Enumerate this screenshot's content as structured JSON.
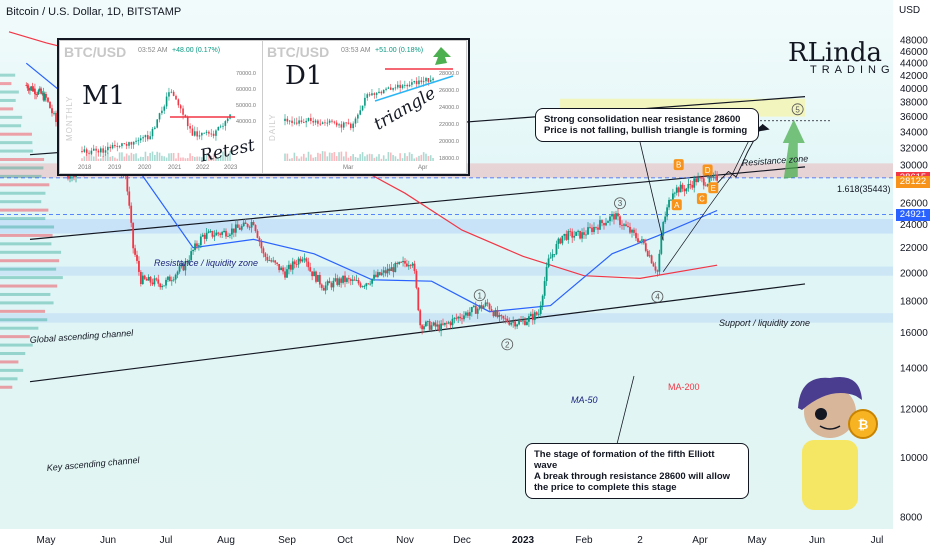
{
  "header": {
    "title": "Bitcoin / U.S. Dollar, 1D, BITSTAMP",
    "currency": "USD"
  },
  "chart_data": {
    "type": "candlestick",
    "y_ticks": [
      "48000",
      "46000",
      "44000",
      "42000",
      "40000",
      "38000",
      "36000",
      "34000",
      "32000",
      "30000",
      "28000",
      "26000",
      "24000",
      "22000",
      "20000",
      "18000",
      "16000",
      "14000",
      "12000",
      "10000",
      "8000"
    ],
    "y_tick_values": [
      48000,
      46000,
      44000,
      42000,
      40000,
      38000,
      36000,
      34000,
      32000,
      30000,
      28000,
      26000,
      24000,
      22000,
      20000,
      18000,
      16000,
      14000,
      12000,
      10000,
      8000
    ],
    "x_ticks": [
      "May",
      "Jun",
      "Jul",
      "Aug",
      "Sep",
      "Oct",
      "Nov",
      "Dec",
      "2023",
      "Feb",
      "2",
      "Apr",
      "May",
      "Jun",
      "Jul"
    ],
    "y_range": [
      8000,
      48000
    ],
    "scale": "log",
    "price_labels": [
      {
        "value": 28615,
        "text": "28615",
        "color": "#f23645"
      },
      {
        "value": 28122,
        "text": "28122",
        "color": "#f7931a"
      },
      {
        "value": 24921,
        "text": "24921",
        "color": "#2962ff"
      }
    ],
    "close_path": [
      [
        "2022-04-15",
        40500
      ],
      [
        "2022-04-25",
        39500
      ],
      [
        "2022-05-01",
        38500
      ],
      [
        "2022-05-08",
        34000
      ],
      [
        "2022-05-12",
        29000
      ],
      [
        "2022-05-20",
        29500
      ],
      [
        "2022-06-01",
        30500
      ],
      [
        "2022-06-10",
        29000
      ],
      [
        "2022-06-14",
        22000
      ],
      [
        "2022-06-18",
        19500
      ],
      [
        "2022-06-30",
        19200
      ],
      [
        "2022-07-10",
        20500
      ],
      [
        "2022-07-20",
        23000
      ],
      [
        "2022-07-31",
        23300
      ],
      [
        "2022-08-10",
        23800
      ],
      [
        "2022-08-15",
        24300
      ],
      [
        "2022-08-20",
        21400
      ],
      [
        "2022-08-31",
        20000
      ],
      [
        "2022-09-10",
        21500
      ],
      [
        "2022-09-13",
        20200
      ],
      [
        "2022-09-20",
        19000
      ],
      [
        "2022-09-30",
        19500
      ],
      [
        "2022-10-10",
        19200
      ],
      [
        "2022-10-25",
        20300
      ],
      [
        "2022-11-05",
        21000
      ],
      [
        "2022-11-09",
        16500
      ],
      [
        "2022-11-20",
        16300
      ],
      [
        "2022-11-30",
        17000
      ],
      [
        "2022-12-14",
        17800
      ],
      [
        "2022-12-20",
        16800
      ],
      [
        "2022-12-31",
        16600
      ],
      [
        "2023-01-09",
        17200
      ],
      [
        "2023-01-14",
        20900
      ],
      [
        "2023-01-21",
        23000
      ],
      [
        "2023-01-31",
        23100
      ],
      [
        "2023-02-16",
        24800
      ],
      [
        "2023-02-25",
        23200
      ],
      [
        "2023-03-03",
        22300
      ],
      [
        "2023-03-10",
        20100
      ],
      [
        "2023-03-13",
        24100
      ],
      [
        "2023-03-18",
        27400
      ],
      [
        "2023-03-25",
        27500
      ],
      [
        "2023-03-30",
        28400
      ],
      [
        "2023-04-05",
        28200
      ],
      [
        "2023-04-10",
        28600
      ]
    ],
    "ma_200": [
      [
        "2022-04-01",
        49500
      ],
      [
        "2022-05-01",
        47500
      ],
      [
        "2022-06-01",
        44800
      ],
      [
        "2022-07-01",
        41500
      ],
      [
        "2022-08-01",
        38000
      ],
      [
        "2022-09-01",
        34000
      ],
      [
        "2022-10-01",
        30500
      ],
      [
        "2022-11-01",
        27000
      ],
      [
        "2022-12-01",
        23500
      ],
      [
        "2023-01-01",
        21300
      ],
      [
        "2023-02-01",
        19800
      ],
      [
        "2023-03-01",
        19600
      ],
      [
        "2023-04-10",
        20600
      ]
    ],
    "ma_50": [
      [
        "2022-04-15",
        44000
      ],
      [
        "2022-05-15",
        38000
      ],
      [
        "2022-06-15",
        30000
      ],
      [
        "2022-07-15",
        22000
      ],
      [
        "2022-08-15",
        22700
      ],
      [
        "2022-09-15",
        21500
      ],
      [
        "2022-10-15",
        19500
      ],
      [
        "2022-11-15",
        19400
      ],
      [
        "2022-12-15",
        17300
      ],
      [
        "2023-01-15",
        17700
      ],
      [
        "2023-02-15",
        21500
      ],
      [
        "2023-03-10",
        23000
      ],
      [
        "2023-04-10",
        25300
      ]
    ],
    "resistance_zone": [
      36000,
      38500
    ],
    "resistance_liquidity_zone": [
      28600,
      30200
    ],
    "support_liquidity_zone": [
      23200,
      24500
    ],
    "lower_zone": [
      19800,
      20500
    ],
    "fib_level": {
      "label": "1.618(35443)",
      "value": 35443
    },
    "annotations": {
      "resistance_zone": "Resistance zone",
      "resistance_liquidity": "Resistance / liquidity zone",
      "support_liquidity": "Support / liquidity zone",
      "global_channel": "Global ascending channel",
      "key_channel": "Key ascending channel",
      "ma50": "MA-50",
      "ma200": "MA-200"
    },
    "elliott_waves": [
      "1",
      "2",
      "3",
      "4",
      "5"
    ],
    "abcde": [
      "A",
      "B",
      "C",
      "D",
      "E"
    ]
  },
  "callouts": {
    "top": [
      "Strong consolidation near resistance 28600",
      "Price is not falling, bullish triangle is forming"
    ],
    "bottom": [
      "The stage of formation of the fifth Elliott wave",
      "A break through resistance 28600 will allow",
      "the price to complete this stage"
    ]
  },
  "insets": {
    "m1": {
      "title": "BTC/USD",
      "time": "03:52 AM",
      "change": "+48.00 (0.17%)",
      "tf": "M1",
      "side": "MONTHLY",
      "handwriting": "Retest",
      "x_ticks": [
        "2018",
        "2019",
        "2020",
        "2021",
        "2022",
        "2023"
      ],
      "y_ticks": [
        "70000.0",
        "60000.0",
        "50000.0",
        "40000.0"
      ]
    },
    "d1": {
      "title": "BTC/USD",
      "time": "03:53 AM",
      "change": "+51.00 (0.18%)",
      "tf": "D1",
      "side": "DAILY",
      "handwriting": "triangle",
      "x_ticks": [
        "Mar",
        "Apr"
      ],
      "y_ticks": [
        "28000.0",
        "26000.0",
        "24000.0",
        "22000.0",
        "20000.0",
        "18000.0"
      ]
    }
  },
  "logo": {
    "name": "RLinda",
    "sub": "TRADING"
  },
  "colors": {
    "up": "#089981",
    "down": "#f23645",
    "ma50": "#2962ff",
    "ma200": "#f23645",
    "orange": "#f7931a",
    "green_arrow": "#4caf50"
  }
}
